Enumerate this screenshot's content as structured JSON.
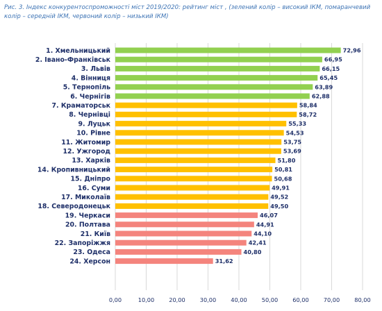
{
  "caption": "Рис. 3. Індекс конкурентоспроможності міст 2019/2020: рейтинг міст , (зелений колір – високий ІКМ, помаранчевий колір – середній ІКМ, червоний колір – низький ІКМ)",
  "chart_data": {
    "type": "bar",
    "orientation": "horizontal",
    "title": "",
    "xlabel": "",
    "ylabel": "",
    "xlim": [
      0,
      80
    ],
    "ticks": [
      "0,00",
      "10,00",
      "20,00",
      "30,00",
      "40,00",
      "50,00",
      "60,00",
      "70,00",
      "80,00"
    ],
    "grid": true,
    "categories": [
      "1. Хмельницький",
      "2. Івано-Франківськ",
      "3. Львів",
      "4. Вінниця",
      "5. Тернопіль",
      "6. Чернігів",
      "7. Краматорськ",
      "8. Чернівці",
      "9. Луцьк",
      "10. Рівне",
      "11. Житомир",
      "12. Ужгород",
      "13. Харків",
      "14. Кропивницький",
      "15. Дніпро",
      "16. Суми",
      "17. Миколаїв",
      "18. Северодонецьк",
      "19. Черкаси",
      "20. Полтава",
      "21. Київ",
      "22. Запоріжжя",
      "23. Одеса",
      "24. Херсон"
    ],
    "values": [
      72.96,
      66.95,
      66.15,
      65.45,
      63.89,
      62.88,
      58.84,
      58.72,
      55.33,
      54.53,
      53.75,
      53.69,
      51.8,
      50.81,
      50.68,
      49.91,
      49.52,
      49.5,
      46.07,
      44.91,
      44.1,
      42.41,
      40.8,
      31.62
    ],
    "value_labels": [
      "72,96",
      "66,95",
      "66,15",
      "65,45",
      "63,89",
      "62,88",
      "58,84",
      "58,72",
      "55,33",
      "54,53",
      "53,75",
      "53,69",
      "51,80",
      "50,81",
      "50,68",
      "49,91",
      "49,52",
      "49,50",
      "46,07",
      "44,91",
      "44,10",
      "42,41",
      "40,80",
      "31,62"
    ],
    "groups": [
      "high",
      "high",
      "high",
      "high",
      "high",
      "high",
      "medium",
      "medium",
      "medium",
      "medium",
      "medium",
      "medium",
      "medium",
      "medium",
      "medium",
      "medium",
      "medium",
      "medium",
      "low",
      "low",
      "low",
      "low",
      "low",
      "low"
    ],
    "colors": {
      "high": "#92d050",
      "medium": "#ffc000",
      "low": "#f4847d",
      "grid": "#d9d9d9",
      "text": "#1e2f68",
      "caption": "#3e74b5"
    }
  }
}
